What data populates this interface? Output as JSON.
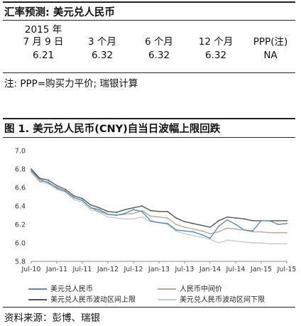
{
  "table_title": "汇率预测: 美元兑人民币",
  "forecast_table": {
    "headers": [
      {
        "line1": "2015 年",
        "line2": "7 月 9 日"
      },
      {
        "line1": "",
        "line2": "3 个月"
      },
      {
        "line1": "",
        "line2": "6 个月"
      },
      {
        "line1": "",
        "line2": "12 个月"
      },
      {
        "line1": "",
        "line2": "PPP(注)"
      }
    ],
    "values": [
      "6.21",
      "6.32",
      "6.32",
      "6.32",
      "NA"
    ]
  },
  "note": "注: PPP=购买力平价; 瑞银计算",
  "chart_title": "图 1. 美元兑人民币(CNY)自当日波幅上限回跌",
  "source": "资料来源：彭博、瑞银",
  "colors": {
    "cny": "#4f8fc0",
    "central": "#b9a88e",
    "upper": "#555555",
    "lower": "#c8ccd2",
    "axis": "#888888"
  },
  "chart_data": {
    "type": "line",
    "title": "图 1. 美元兑人民币(CNY)自当日波幅上限回跌",
    "xlabel": "",
    "ylabel": "",
    "ylim": [
      5.8,
      7.0
    ],
    "yticks": [
      "7.0",
      "6.8",
      "6.6",
      "6.4",
      "6.2",
      "6.0",
      "5.8"
    ],
    "xticks": [
      "Jul-10",
      "Jan-11",
      "Jul-11",
      "Jan-12",
      "Jul-12",
      "Jan-13",
      "Jul-13",
      "Jan-14",
      "Jul-14",
      "Jan-15",
      "Jul-15"
    ],
    "grid": false,
    "legend_position": "bottom",
    "x": [
      "Jul-10",
      "Sep-10",
      "Nov-10",
      "Jan-11",
      "Mar-11",
      "May-11",
      "Jul-11",
      "Sep-11",
      "Nov-11",
      "Jan-12",
      "Mar-12",
      "May-12",
      "Jul-12",
      "Sep-12",
      "Nov-12",
      "Jan-13",
      "Mar-13",
      "May-13",
      "Jul-13",
      "Sep-13",
      "Nov-13",
      "Jan-14",
      "Mar-14",
      "May-14",
      "Jul-14",
      "Sep-14",
      "Nov-14",
      "Jan-15",
      "Mar-15",
      "May-15",
      "Jul-15"
    ],
    "series": [
      {
        "name": "美元兑人民币",
        "key": "cny",
        "values": [
          6.78,
          6.69,
          6.65,
          6.6,
          6.56,
          6.49,
          6.46,
          6.38,
          6.36,
          6.31,
          6.3,
          6.32,
          6.36,
          6.34,
          6.24,
          6.22,
          6.21,
          6.14,
          6.13,
          6.12,
          6.09,
          6.05,
          6.18,
          6.25,
          6.2,
          6.14,
          6.13,
          6.24,
          6.24,
          6.2,
          6.21
        ]
      },
      {
        "name": "人民币中间价",
        "key": "central",
        "values": [
          6.78,
          6.67,
          6.66,
          6.59,
          6.56,
          6.49,
          6.46,
          6.38,
          6.34,
          6.31,
          6.3,
          6.31,
          6.32,
          6.35,
          6.29,
          6.28,
          6.27,
          6.2,
          6.17,
          6.15,
          6.13,
          6.1,
          6.12,
          6.16,
          6.15,
          6.14,
          6.12,
          6.12,
          6.11,
          6.11,
          6.11
        ]
      },
      {
        "name": "美元兑人民币波动区间上限",
        "key": "upper",
        "values": [
          6.8,
          6.7,
          6.68,
          6.62,
          6.58,
          6.51,
          6.48,
          6.41,
          6.38,
          6.34,
          6.33,
          6.36,
          6.38,
          6.4,
          6.35,
          6.34,
          6.34,
          6.27,
          6.23,
          6.21,
          6.19,
          6.17,
          6.24,
          6.28,
          6.27,
          6.26,
          6.24,
          6.24,
          6.24,
          6.24,
          6.24
        ]
      },
      {
        "name": "美元兑人民币波动区间下限",
        "key": "lower",
        "values": [
          6.76,
          6.66,
          6.64,
          6.58,
          6.55,
          6.47,
          6.44,
          6.36,
          6.33,
          6.28,
          6.27,
          6.26,
          6.26,
          6.28,
          6.23,
          6.22,
          6.2,
          6.13,
          6.1,
          6.08,
          6.06,
          6.04,
          6.0,
          6.03,
          6.02,
          6.01,
          6.0,
          6.0,
          5.99,
          5.99,
          5.99
        ]
      }
    ]
  }
}
